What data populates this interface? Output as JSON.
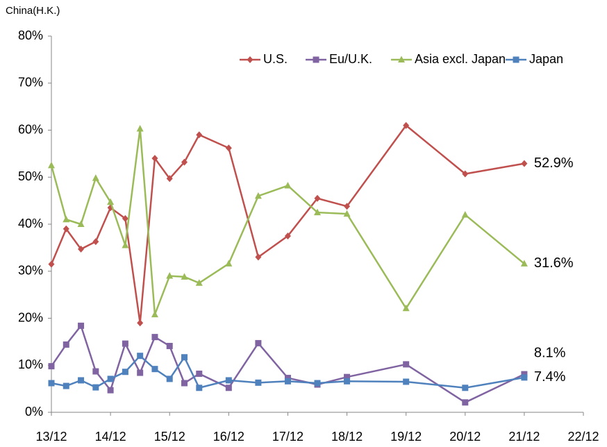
{
  "chart_data": {
    "type": "line",
    "title": "China(H.K.)",
    "x": [
      13,
      13.25,
      13.5,
      13.75,
      14,
      14.25,
      14.5,
      14.75,
      15,
      15.25,
      15.5,
      16,
      16.5,
      17,
      17.5,
      18,
      19,
      20,
      21
    ],
    "xlim": [
      13,
      22
    ],
    "xticks": [
      {
        "value": 13,
        "label": "13/12"
      },
      {
        "value": 14,
        "label": "14/12"
      },
      {
        "value": 15,
        "label": "15/12"
      },
      {
        "value": 16,
        "label": "16/12"
      },
      {
        "value": 17,
        "label": "17/12"
      },
      {
        "value": 18,
        "label": "18/12"
      },
      {
        "value": 19,
        "label": "19/12"
      },
      {
        "value": 20,
        "label": "20/12"
      },
      {
        "value": 21,
        "label": "21/12"
      },
      {
        "value": 22,
        "label": "22/12"
      }
    ],
    "ylim": [
      0,
      80
    ],
    "yticks": [
      {
        "value": 0,
        "label": "0%"
      },
      {
        "value": 10,
        "label": "10%"
      },
      {
        "value": 20,
        "label": "20%"
      },
      {
        "value": 30,
        "label": "30%"
      },
      {
        "value": 40,
        "label": "40%"
      },
      {
        "value": 50,
        "label": "50%"
      },
      {
        "value": 60,
        "label": "60%"
      },
      {
        "value": 70,
        "label": "70%"
      },
      {
        "value": 80,
        "label": "80%"
      }
    ],
    "grid": false,
    "legend": "top-right",
    "series": [
      {
        "name": "U.S.",
        "color": "#c0504d",
        "marker": "diamond",
        "values": [
          31.5,
          39,
          34.7,
          36.3,
          43.5,
          41.2,
          19,
          54,
          49.7,
          53.2,
          59,
          56.2,
          33,
          37.5,
          45.5,
          43.8,
          61,
          50.7,
          52.9
        ],
        "value_labels": [
          null,
          null,
          null,
          null,
          null,
          null,
          null,
          null,
          null,
          null,
          null,
          null,
          null,
          null,
          null,
          null,
          null,
          null,
          "52.9%"
        ]
      },
      {
        "name": "Eu/U.K.",
        "color": "#8064a2",
        "marker": "square",
        "values": [
          9.8,
          14.4,
          18.4,
          8.7,
          4.7,
          14.6,
          8.4,
          16,
          14.1,
          6.2,
          8.2,
          5.2,
          14.7,
          7.3,
          5.9,
          7.5,
          10.2,
          2.1,
          8.1
        ],
        "value_labels": [
          null,
          null,
          null,
          null,
          null,
          null,
          null,
          null,
          null,
          null,
          null,
          null,
          null,
          null,
          null,
          null,
          null,
          null,
          "8.1%"
        ]
      },
      {
        "name": "Asia excl. Japan",
        "color": "#9bbb59",
        "marker": "triangle",
        "values": [
          52.5,
          41,
          40,
          49.8,
          44.7,
          35.5,
          60.3,
          20.8,
          29,
          28.8,
          27.5,
          31.6,
          46,
          48.2,
          42.5,
          42.2,
          22.1,
          42,
          31.6
        ],
        "value_labels": [
          null,
          null,
          null,
          null,
          null,
          null,
          null,
          null,
          null,
          null,
          null,
          null,
          null,
          null,
          null,
          null,
          null,
          null,
          "31.6%"
        ]
      },
      {
        "name": "Japan",
        "color": "#4f81bd",
        "marker": "square",
        "values": [
          6.2,
          5.6,
          6.8,
          5.3,
          7.1,
          8.6,
          12,
          9.2,
          7.1,
          11.7,
          5.2,
          6.8,
          6.3,
          6.6,
          6.2,
          6.6,
          6.5,
          5.2,
          7.4
        ],
        "value_labels": [
          null,
          null,
          null,
          null,
          null,
          null,
          null,
          null,
          null,
          null,
          null,
          null,
          null,
          null,
          null,
          null,
          null,
          null,
          "7.4%"
        ]
      }
    ]
  }
}
